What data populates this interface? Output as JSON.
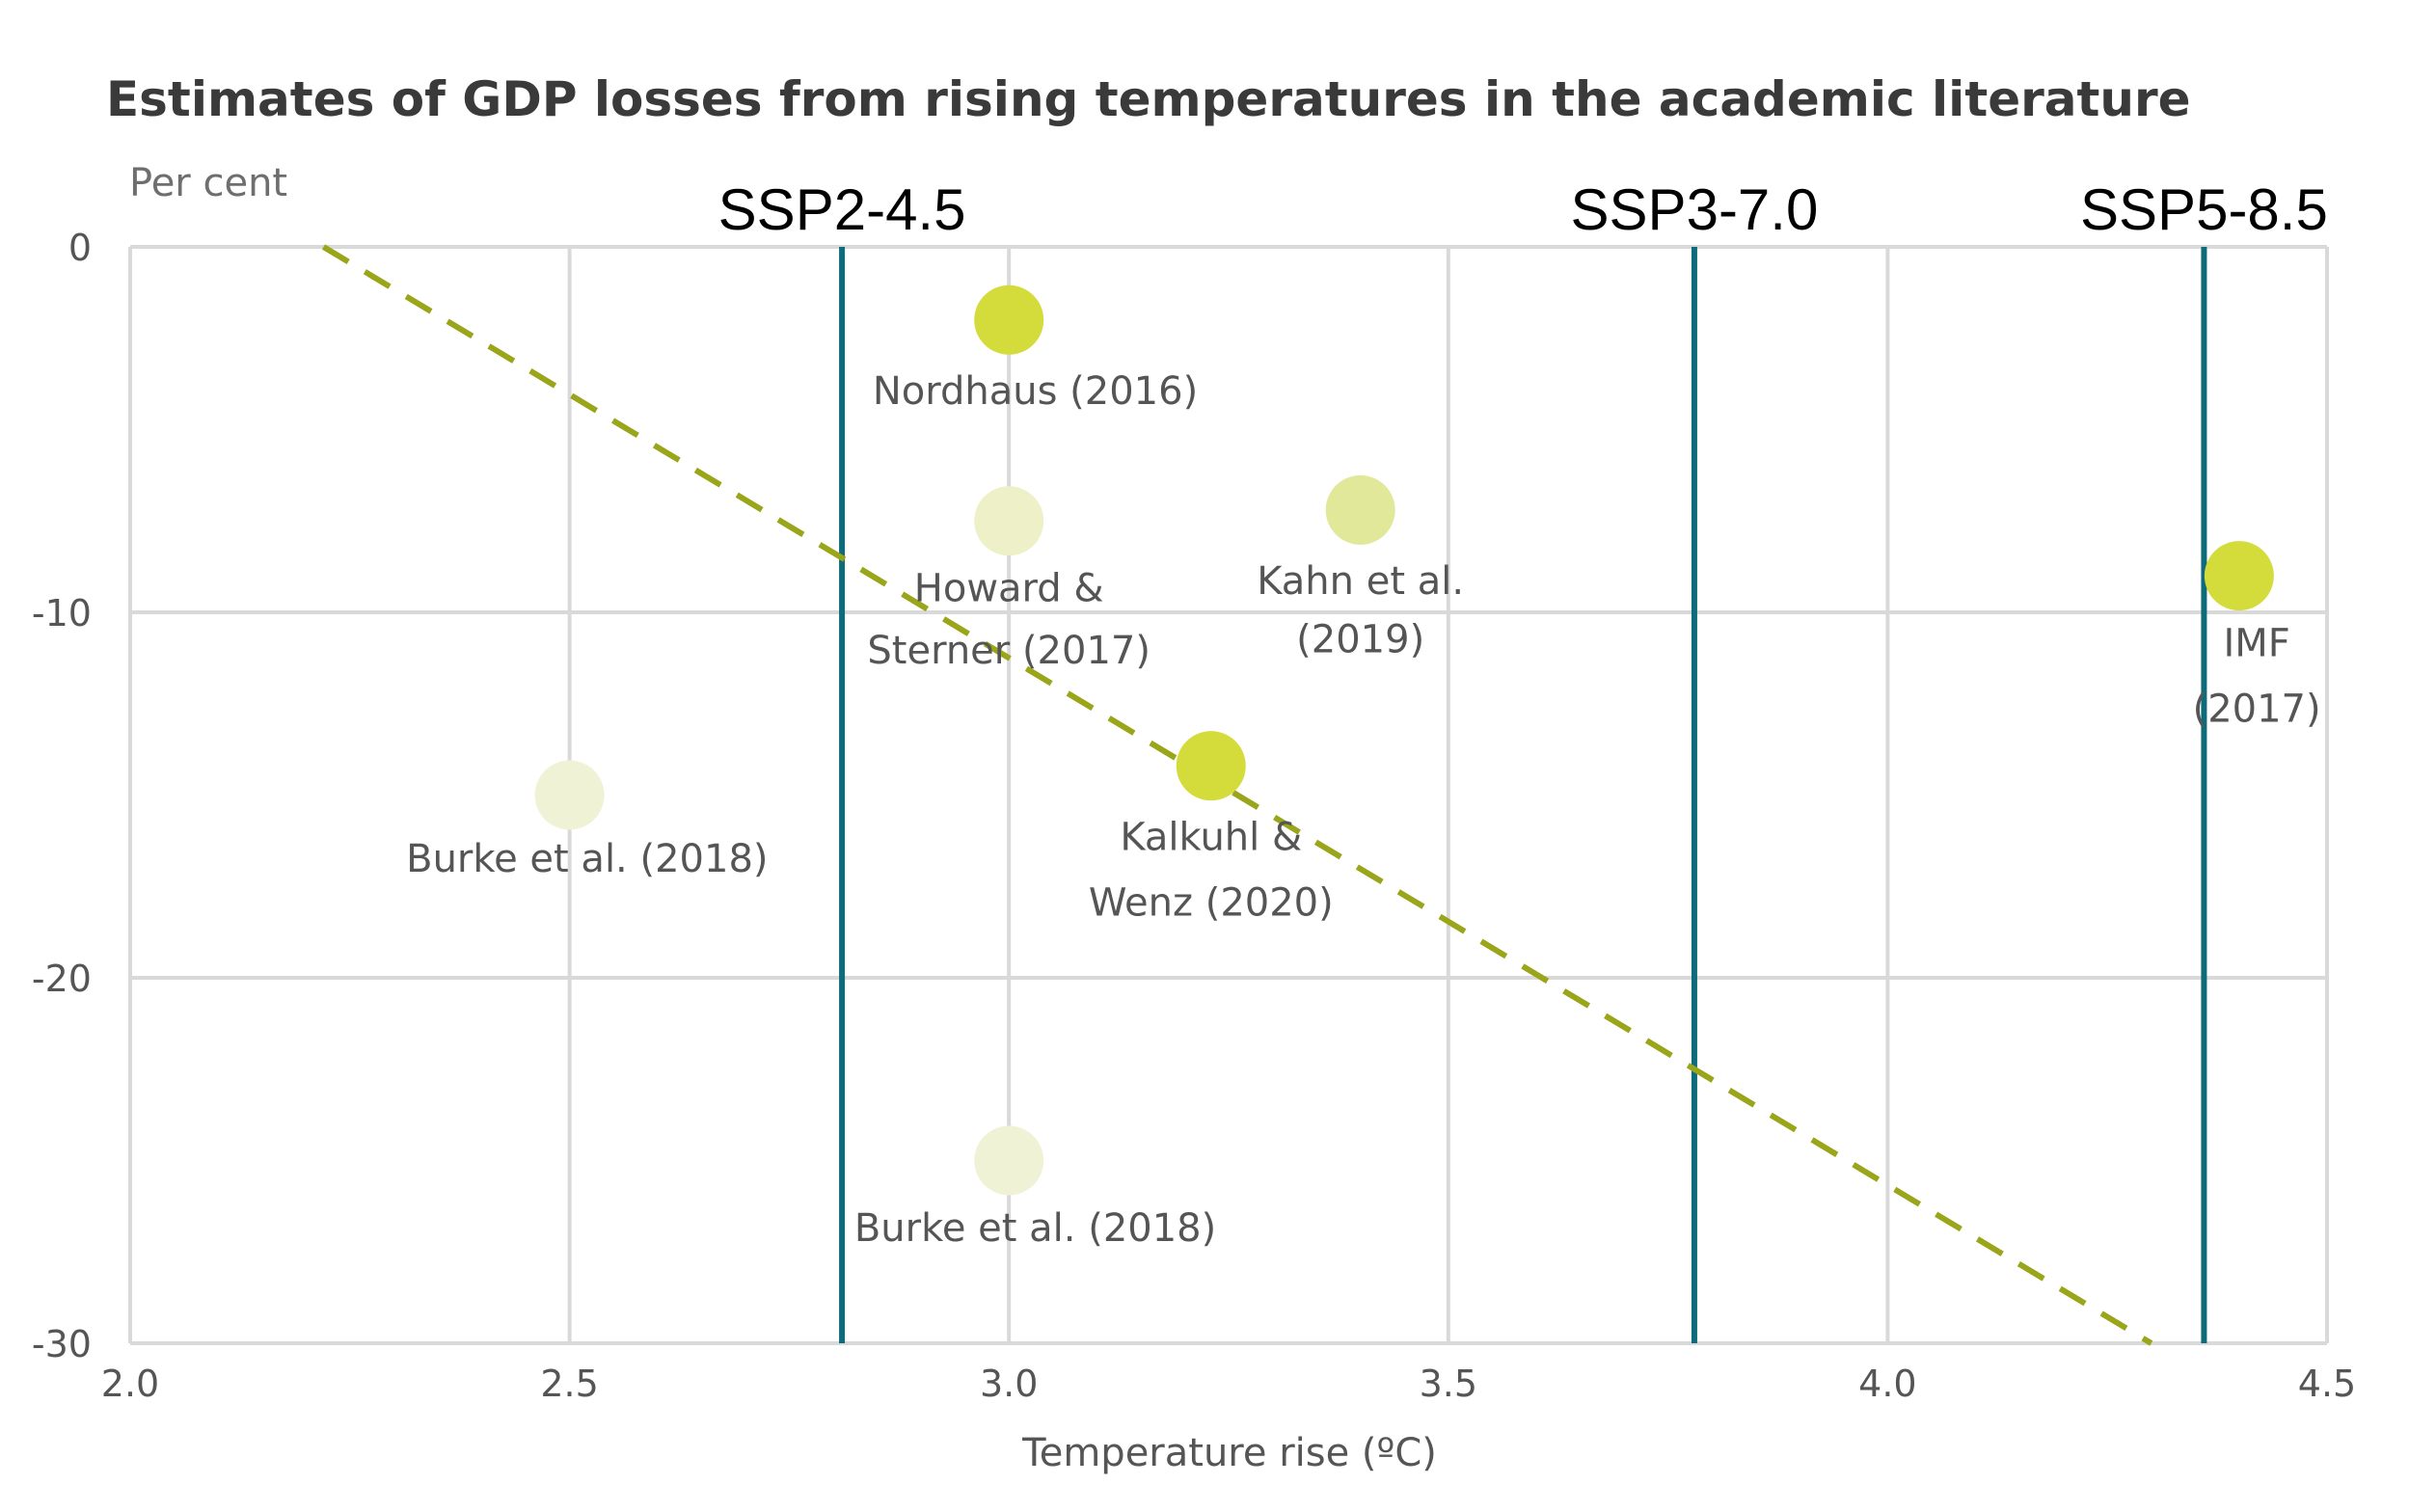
{
  "chart_data": {
    "type": "scatter",
    "title": "Estimates of GDP losses from rising temperatures in the academic literature",
    "y_unit_label": "Per cent",
    "xlabel": "Temperature rise (ºC)",
    "ylabel": "",
    "xlim": [
      2.0,
      4.5
    ],
    "ylim": [
      -30,
      0
    ],
    "x_ticks": [
      2.0,
      2.5,
      3.0,
      3.5,
      4.0,
      4.5
    ],
    "x_tick_labels": [
      "2.0",
      "2.5",
      "3.0",
      "3.5",
      "4.0",
      "4.5"
    ],
    "y_ticks": [
      0,
      -10,
      -20,
      -30
    ],
    "y_tick_labels": [
      "0",
      "-10",
      "-20",
      "-30"
    ],
    "grid": true,
    "points": [
      {
        "label": "Nordhaus (2016)",
        "x": 3.0,
        "y": -2.0,
        "color": "#d4dc3c"
      },
      {
        "label": "Howard & Sterner (2017)",
        "x": 3.0,
        "y": -7.5,
        "color": "#eef0c8"
      },
      {
        "label": "Kahn et al. (2019)",
        "x": 3.4,
        "y": -7.2,
        "color": "#e2e89a"
      },
      {
        "label": "IMF (2017)",
        "x": 4.4,
        "y": -9.0,
        "color": "#d4dc3c"
      },
      {
        "label": "Kalkuhl & Wenz (2020)",
        "x": 3.23,
        "y": -14.2,
        "color": "#d4dc3c"
      },
      {
        "label": "Burke et al. (2018)",
        "x": 2.5,
        "y": -15.0,
        "color": "#f0f2d6"
      },
      {
        "label": "Burke et al. (2018)",
        "x": 3.0,
        "y": -25.0,
        "color": "#f0f2d6"
      }
    ],
    "point_labels": [
      {
        "lines": [
          "Nordhaus (2016)"
        ],
        "x": 3.03,
        "y": -4.3
      },
      {
        "lines": [
          "Howard &",
          "Sterner (2017)"
        ],
        "x": 3.0,
        "y": -9.7,
        "line_step": -1.7
      },
      {
        "lines": [
          "Kahn et al.",
          "(2019)"
        ],
        "x": 3.4,
        "y": -9.5,
        "line_step": -1.6
      },
      {
        "lines": [
          "IMF",
          "(2017)"
        ],
        "x": 4.42,
        "y": -11.2,
        "line_step": -1.8
      },
      {
        "lines": [
          "Kalkuhl &",
          "Wenz (2020)"
        ],
        "x": 3.23,
        "y": -16.5,
        "line_step": -1.8
      },
      {
        "lines": [
          "Burke et al. (2018)"
        ],
        "x": 2.52,
        "y": -17.1
      },
      {
        "lines": [
          "Burke et al. (2018)"
        ],
        "x": 3.03,
        "y": -27.2
      }
    ],
    "vertical_lines": [
      {
        "label": "SSP2-4.5",
        "x": 2.81,
        "color": "#0e6b7a"
      },
      {
        "label": "SSP3-7.0",
        "x": 3.78,
        "color": "#0e6b7a"
      },
      {
        "label": "SSP5-8.5",
        "x": 4.36,
        "color": "#0e6b7a"
      }
    ],
    "trend_line": {
      "style": "dashed",
      "color": "#9aa51a",
      "from": [
        2.22,
        0.0
      ],
      "to": [
        4.3,
        -30.0
      ]
    },
    "colors": {
      "grid": "#d9d9d9",
      "text": "#555555",
      "title": "#3a3a3a"
    }
  }
}
